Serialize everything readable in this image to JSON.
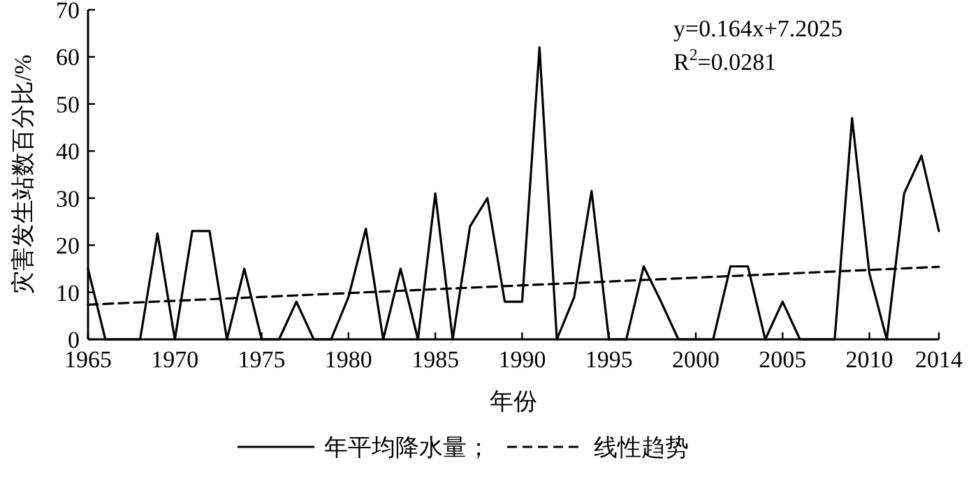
{
  "chart_data": {
    "type": "line",
    "xlabel": "年份",
    "ylabel": "灾害发生站数百分比/%",
    "x": [
      1965,
      1966,
      1967,
      1968,
      1969,
      1970,
      1971,
      1972,
      1973,
      1974,
      1975,
      1976,
      1977,
      1978,
      1979,
      1980,
      1981,
      1982,
      1983,
      1984,
      1985,
      1986,
      1987,
      1988,
      1989,
      1990,
      1991,
      1992,
      1993,
      1994,
      1995,
      1996,
      1997,
      1998,
      1999,
      2000,
      2001,
      2002,
      2003,
      2004,
      2005,
      2006,
      2007,
      2008,
      2009,
      2010,
      2011,
      2012,
      2013,
      2014
    ],
    "series": [
      {
        "name": "年平均降水量；",
        "color": "#000000",
        "line_style": "solid",
        "values": [
          15,
          0,
          0,
          0,
          22.5,
          0,
          23,
          23,
          0,
          15,
          0,
          0,
          8,
          0,
          0,
          9,
          23.5,
          0,
          15,
          0,
          31,
          0,
          24,
          30,
          8,
          8,
          62,
          0,
          9,
          31.5,
          0,
          0,
          15.5,
          8,
          0,
          0,
          0,
          15.5,
          15.5,
          0,
          8,
          0,
          0,
          0,
          47,
          14,
          0,
          31,
          39,
          23
        ]
      },
      {
        "name": "线性趋势",
        "color": "#000000",
        "line_style": "dashed",
        "x": [
          1965,
          2014
        ],
        "values": [
          7.37,
          15.4
        ]
      }
    ],
    "annotations": [
      "y=0.164x+7.2025",
      "R$^{2}$=0.0281"
    ],
    "xlim": [
      1965,
      2014
    ],
    "xticks": [
      1965,
      1970,
      1975,
      1980,
      1985,
      1990,
      1995,
      2000,
      2005,
      2010,
      2014
    ],
    "ylim": [
      0,
      70
    ],
    "yticks": [
      0,
      10,
      20,
      30,
      40,
      50,
      60,
      70
    ],
    "grid": false,
    "legend": "bottom",
    "marker": "none"
  }
}
